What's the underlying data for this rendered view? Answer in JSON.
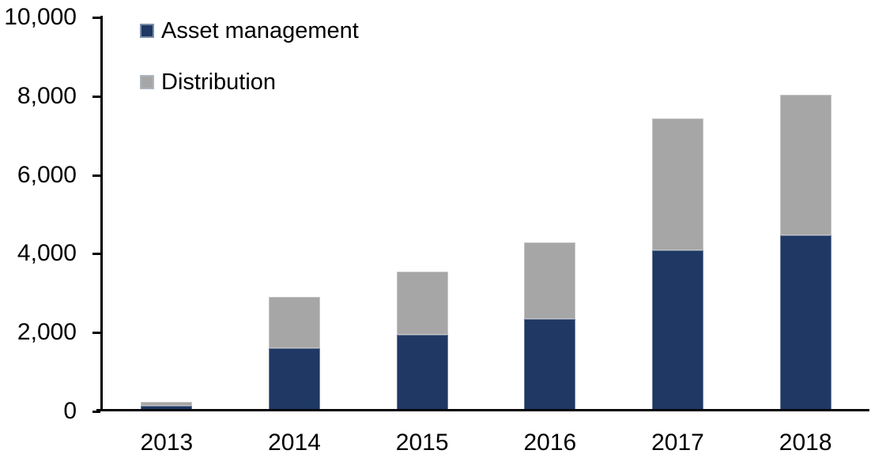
{
  "chart_data": {
    "type": "bar",
    "stacked": true,
    "categories": [
      "2013",
      "2014",
      "2015",
      "2016",
      "2017",
      "2018"
    ],
    "series": [
      {
        "name": "Asset management",
        "color": "#1F3864",
        "values": [
          100,
          1570,
          1900,
          2300,
          4050,
          4420
        ]
      },
      {
        "name": "Distribution",
        "color": "#A6A6A6",
        "values": [
          100,
          1300,
          1600,
          1950,
          3340,
          3580
        ]
      }
    ],
    "ylim": [
      0,
      10000
    ],
    "yticks": [
      {
        "value": 0,
        "label": "0"
      },
      {
        "value": 2000,
        "label": "2,000"
      },
      {
        "value": 4000,
        "label": "4,000"
      },
      {
        "value": 6000,
        "label": "6,000"
      },
      {
        "value": 8000,
        "label": "8,000"
      },
      {
        "value": 10000,
        "label": "10,000"
      }
    ],
    "legend_position": "top-left",
    "grid": false,
    "axis_color": "#000000",
    "background": "#FFFFFF"
  }
}
